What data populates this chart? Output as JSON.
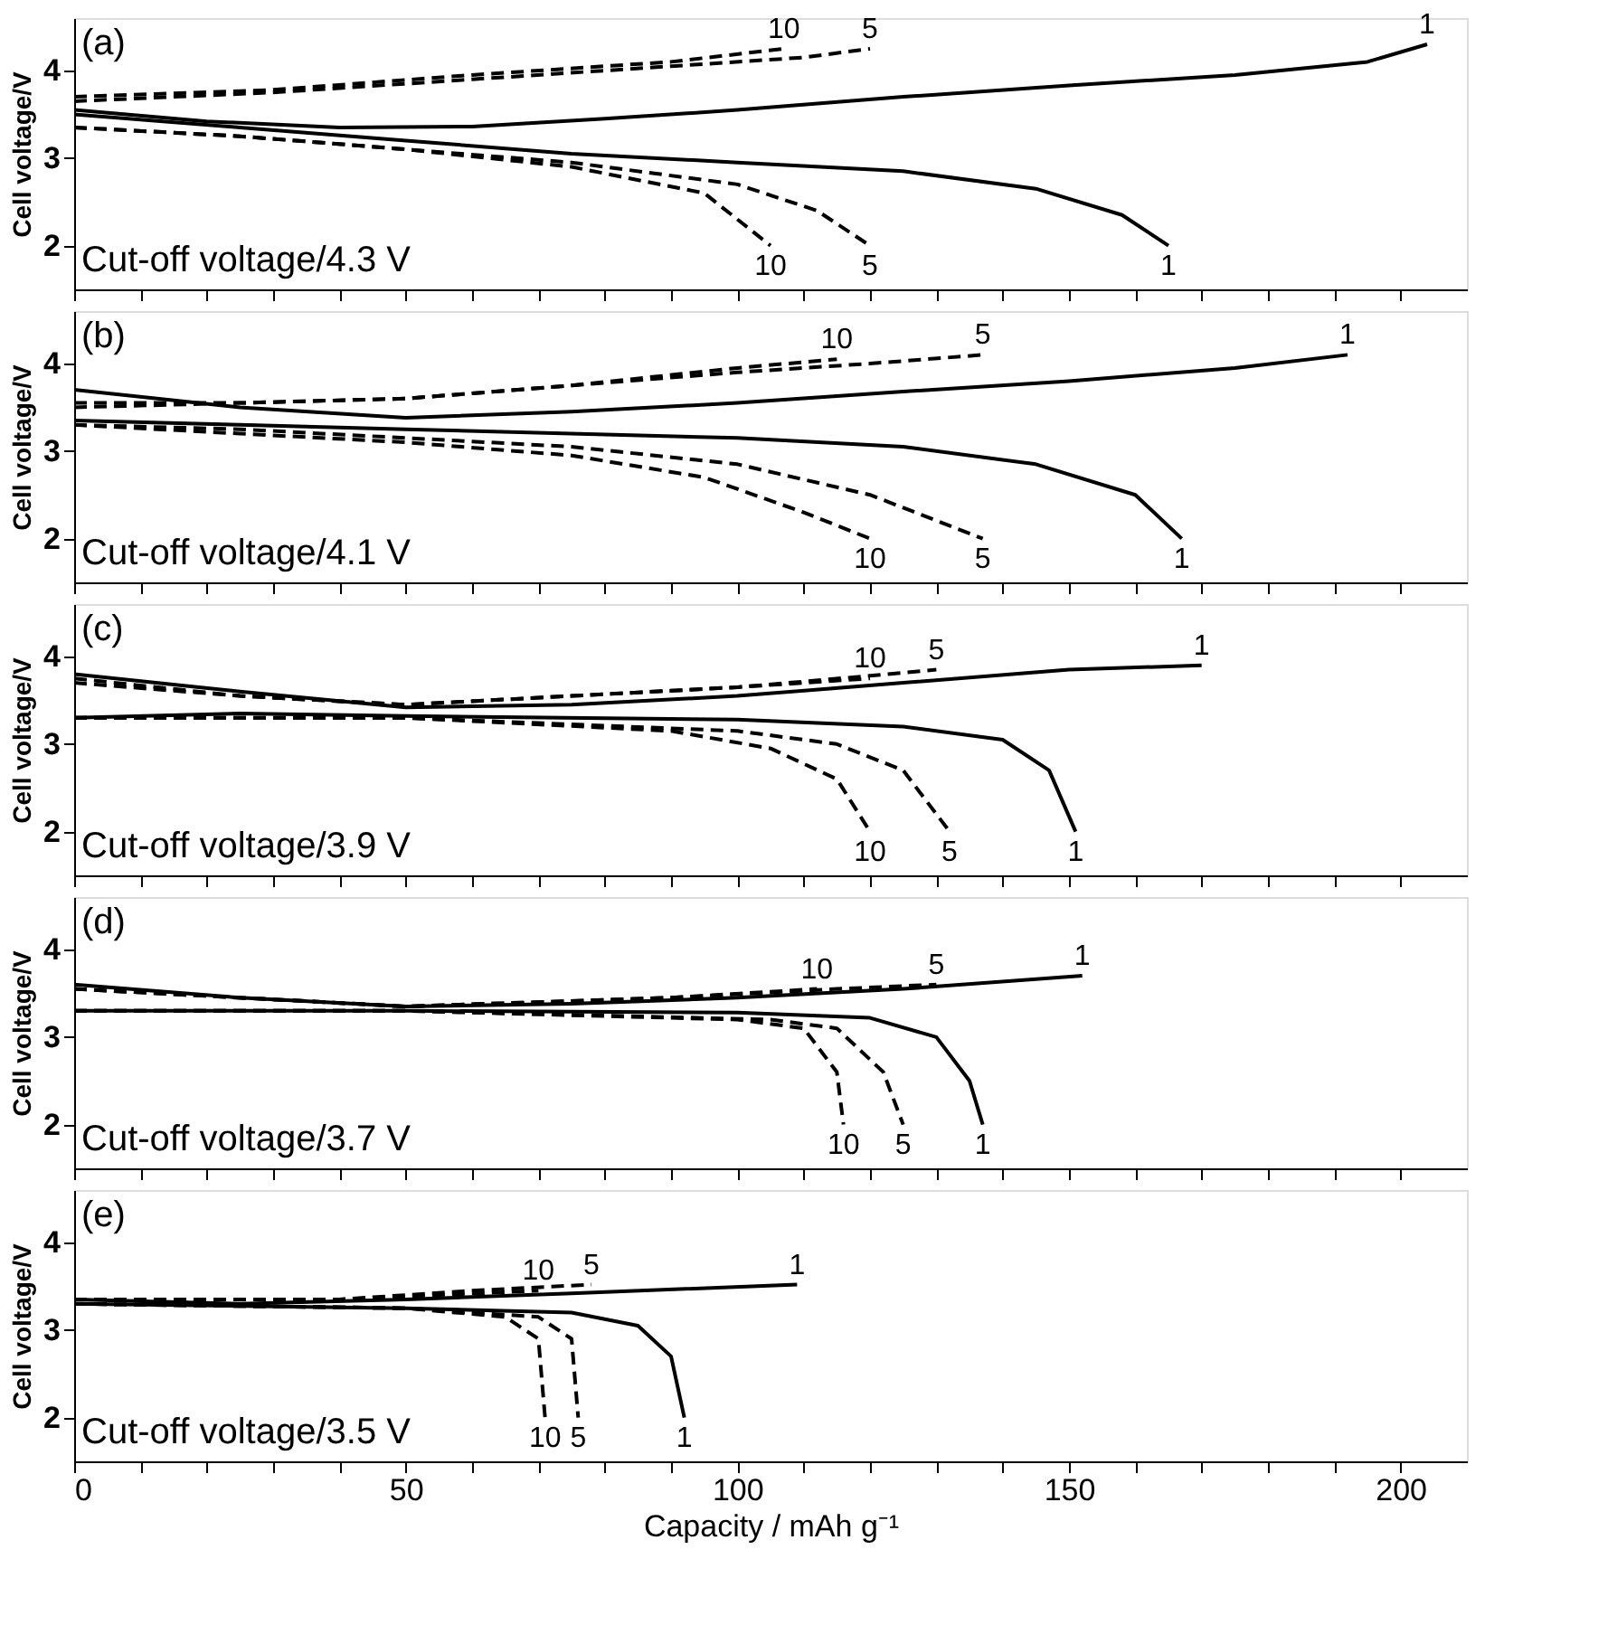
{
  "chart_data": [
    {
      "type": "line",
      "ylabel": "Cell voltage/V",
      "xlim": [
        0,
        210
      ],
      "ylim": [
        1.5,
        4.6
      ],
      "yticks": [
        2,
        3,
        4
      ],
      "tick_labels": "y",
      "grid": false,
      "xticks": [
        0,
        {
          "value": 10,
          "label": null
        },
        {
          "value": 20,
          "label": null
        },
        {
          "value": 30,
          "label": null
        },
        {
          "value": 40,
          "label": null
        },
        50,
        {
          "value": 60,
          "label": null
        },
        {
          "value": 70,
          "label": null
        },
        {
          "value": 80,
          "label": null
        },
        {
          "value": 90,
          "label": null
        },
        100,
        {
          "value": 110,
          "label": null
        },
        {
          "value": 120,
          "label": null
        },
        {
          "value": 130,
          "label": null
        },
        {
          "value": 140,
          "label": null
        },
        150,
        {
          "value": 160,
          "label": null
        },
        {
          "value": 170,
          "label": null
        },
        {
          "value": 180,
          "label": null
        },
        {
          "value": 190,
          "label": null
        },
        200
      ],
      "series": [
        {
          "color": "#000000",
          "line_style": "solid",
          "x": [
            0,
            20,
            40,
            60,
            80,
            100,
            125,
            150,
            175,
            195,
            204
          ],
          "values": [
            3.55,
            3.42,
            3.35,
            3.36,
            3.45,
            3.55,
            3.7,
            3.83,
            3.95,
            4.1,
            4.3
          ]
        },
        {
          "color": "#000000",
          "line_style": "dashed",
          "x": [
            0,
            30,
            60,
            90,
            110,
            120
          ],
          "values": [
            3.65,
            3.75,
            3.9,
            4.05,
            4.15,
            4.25
          ]
        },
        {
          "color": "#000000",
          "line_style": "dashed",
          "x": [
            0,
            30,
            60,
            90,
            107
          ],
          "values": [
            3.7,
            3.78,
            3.95,
            4.1,
            4.25
          ]
        },
        {
          "color": "#000000",
          "line_style": "solid",
          "x": [
            0,
            25,
            50,
            75,
            100,
            125,
            145,
            158,
            165
          ],
          "values": [
            3.5,
            3.35,
            3.2,
            3.05,
            2.95,
            2.85,
            2.65,
            2.35,
            2.0
          ]
        },
        {
          "color": "#000000",
          "line_style": "dashed",
          "x": [
            0,
            25,
            50,
            75,
            100,
            112,
            120
          ],
          "values": [
            3.35,
            3.25,
            3.1,
            2.95,
            2.7,
            2.4,
            2.0
          ]
        },
        {
          "color": "#000000",
          "line_style": "dashed",
          "x": [
            0,
            25,
            50,
            75,
            95,
            105
          ],
          "values": [
            3.35,
            3.25,
            3.1,
            2.9,
            2.6,
            2.0
          ]
        }
      ],
      "annotations": [
        "(a)",
        "Cut-off voltage/4.3 V",
        {
          "text": "1",
          "x": 204,
          "y": 4.3
        },
        {
          "text": "5",
          "x": 120,
          "y": 4.25
        },
        {
          "text": "10",
          "x": 107,
          "y": 4.25
        },
        {
          "text": "1",
          "x": 165,
          "y": 2.0
        },
        {
          "text": "5",
          "x": 120,
          "y": 2.0
        },
        {
          "text": "10",
          "x": 105,
          "y": 2.0
        }
      ]
    },
    {
      "type": "line",
      "ylabel": "Cell voltage/V",
      "xlim": [
        0,
        210
      ],
      "ylim": [
        1.5,
        4.6
      ],
      "yticks": [
        2,
        3,
        4
      ],
      "tick_labels": "y",
      "grid": false,
      "xticks": [
        0,
        {
          "value": 10,
          "label": null
        },
        {
          "value": 20,
          "label": null
        },
        {
          "value": 30,
          "label": null
        },
        {
          "value": 40,
          "label": null
        },
        50,
        {
          "value": 60,
          "label": null
        },
        {
          "value": 70,
          "label": null
        },
        {
          "value": 80,
          "label": null
        },
        {
          "value": 90,
          "label": null
        },
        100,
        {
          "value": 110,
          "label": null
        },
        {
          "value": 120,
          "label": null
        },
        {
          "value": 130,
          "label": null
        },
        {
          "value": 140,
          "label": null
        },
        150,
        {
          "value": 160,
          "label": null
        },
        {
          "value": 170,
          "label": null
        },
        {
          "value": 180,
          "label": null
        },
        {
          "value": 190,
          "label": null
        },
        200
      ],
      "series": [
        {
          "color": "#000000",
          "line_style": "solid",
          "x": [
            0,
            25,
            50,
            75,
            100,
            125,
            150,
            175,
            192
          ],
          "values": [
            3.7,
            3.5,
            3.38,
            3.45,
            3.55,
            3.68,
            3.8,
            3.95,
            4.1
          ]
        },
        {
          "color": "#000000",
          "line_style": "dashed",
          "x": [
            0,
            25,
            50,
            75,
            100,
            120,
            137
          ],
          "values": [
            3.55,
            3.55,
            3.6,
            3.75,
            3.9,
            4.0,
            4.1
          ]
        },
        {
          "color": "#000000",
          "line_style": "dashed",
          "x": [
            0,
            25,
            50,
            75,
            100,
            115
          ],
          "values": [
            3.5,
            3.55,
            3.6,
            3.75,
            3.95,
            4.05
          ]
        },
        {
          "color": "#000000",
          "line_style": "solid",
          "x": [
            0,
            25,
            50,
            100,
            125,
            145,
            160,
            167
          ],
          "values": [
            3.35,
            3.3,
            3.25,
            3.15,
            3.05,
            2.85,
            2.5,
            2.0
          ]
        },
        {
          "color": "#000000",
          "line_style": "dashed",
          "x": [
            0,
            25,
            50,
            75,
            100,
            120,
            137
          ],
          "values": [
            3.3,
            3.25,
            3.15,
            3.05,
            2.85,
            2.5,
            2.0
          ]
        },
        {
          "color": "#000000",
          "line_style": "dashed",
          "x": [
            0,
            25,
            50,
            75,
            95,
            110,
            120
          ],
          "values": [
            3.3,
            3.2,
            3.1,
            2.95,
            2.7,
            2.3,
            2.0
          ]
        }
      ],
      "annotations": [
        "(b)",
        "Cut-off voltage/4.1 V",
        {
          "text": "1",
          "x": 192,
          "y": 4.1
        },
        {
          "text": "5",
          "x": 137,
          "y": 4.1
        },
        {
          "text": "10",
          "x": 115,
          "y": 4.05
        },
        {
          "text": "1",
          "x": 167,
          "y": 2.0
        },
        {
          "text": "5",
          "x": 137,
          "y": 2.0
        },
        {
          "text": "10",
          "x": 120,
          "y": 2.0
        }
      ]
    },
    {
      "type": "line",
      "ylabel": "Cell voltage/V",
      "xlim": [
        0,
        210
      ],
      "ylim": [
        1.5,
        4.6
      ],
      "yticks": [
        2,
        3,
        4
      ],
      "tick_labels": "y",
      "grid": false,
      "xticks": [
        0,
        {
          "value": 10,
          "label": null
        },
        {
          "value": 20,
          "label": null
        },
        {
          "value": 30,
          "label": null
        },
        {
          "value": 40,
          "label": null
        },
        50,
        {
          "value": 60,
          "label": null
        },
        {
          "value": 70,
          "label": null
        },
        {
          "value": 80,
          "label": null
        },
        {
          "value": 90,
          "label": null
        },
        100,
        {
          "value": 110,
          "label": null
        },
        {
          "value": 120,
          "label": null
        },
        {
          "value": 130,
          "label": null
        },
        {
          "value": 140,
          "label": null
        },
        150,
        {
          "value": 160,
          "label": null
        },
        {
          "value": 170,
          "label": null
        },
        {
          "value": 180,
          "label": null
        },
        {
          "value": 190,
          "label": null
        },
        200
      ],
      "series": [
        {
          "color": "#000000",
          "line_style": "solid",
          "x": [
            0,
            25,
            50,
            75,
            100,
            125,
            150,
            170
          ],
          "values": [
            3.8,
            3.6,
            3.42,
            3.45,
            3.55,
            3.7,
            3.85,
            3.9
          ]
        },
        {
          "color": "#000000",
          "line_style": "dashed",
          "x": [
            0,
            25,
            50,
            75,
            100,
            120,
            130
          ],
          "values": [
            3.75,
            3.55,
            3.45,
            3.55,
            3.65,
            3.78,
            3.85
          ]
        },
        {
          "color": "#000000",
          "line_style": "dashed",
          "x": [
            0,
            25,
            50,
            75,
            100,
            120
          ],
          "values": [
            3.7,
            3.55,
            3.45,
            3.55,
            3.65,
            3.75
          ]
        },
        {
          "color": "#000000",
          "line_style": "solid",
          "x": [
            0,
            25,
            50,
            100,
            125,
            140,
            147,
            151
          ],
          "values": [
            3.3,
            3.35,
            3.32,
            3.28,
            3.2,
            3.05,
            2.7,
            2.0
          ]
        },
        {
          "color": "#000000",
          "line_style": "dashed",
          "x": [
            0,
            50,
            100,
            115,
            125,
            132
          ],
          "values": [
            3.3,
            3.3,
            3.15,
            3.0,
            2.7,
            2.0
          ]
        },
        {
          "color": "#000000",
          "line_style": "dashed",
          "x": [
            0,
            50,
            90,
            105,
            115,
            120
          ],
          "values": [
            3.3,
            3.3,
            3.15,
            2.95,
            2.6,
            2.0
          ]
        }
      ],
      "annotations": [
        "(c)",
        "Cut-off voltage/3.9 V",
        {
          "text": "1",
          "x": 170,
          "y": 3.9
        },
        {
          "text": "5",
          "x": 130,
          "y": 3.85
        },
        {
          "text": "10",
          "x": 120,
          "y": 3.75
        },
        {
          "text": "1",
          "x": 151,
          "y": 2.0
        },
        {
          "text": "5",
          "x": 132,
          "y": 2.0
        },
        {
          "text": "10",
          "x": 120,
          "y": 2.0
        }
      ]
    },
    {
      "type": "line",
      "ylabel": "Cell voltage/V",
      "xlim": [
        0,
        210
      ],
      "ylim": [
        1.5,
        4.6
      ],
      "yticks": [
        2,
        3,
        4
      ],
      "tick_labels": "y",
      "grid": false,
      "xticks": [
        0,
        {
          "value": 10,
          "label": null
        },
        {
          "value": 20,
          "label": null
        },
        {
          "value": 30,
          "label": null
        },
        {
          "value": 40,
          "label": null
        },
        50,
        {
          "value": 60,
          "label": null
        },
        {
          "value": 70,
          "label": null
        },
        {
          "value": 80,
          "label": null
        },
        {
          "value": 90,
          "label": null
        },
        100,
        {
          "value": 110,
          "label": null
        },
        {
          "value": 120,
          "label": null
        },
        {
          "value": 130,
          "label": null
        },
        {
          "value": 140,
          "label": null
        },
        150,
        {
          "value": 160,
          "label": null
        },
        {
          "value": 170,
          "label": null
        },
        {
          "value": 180,
          "label": null
        },
        {
          "value": 190,
          "label": null
        },
        200
      ],
      "series": [
        {
          "color": "#000000",
          "line_style": "solid",
          "x": [
            0,
            25,
            50,
            75,
            100,
            125,
            152
          ],
          "values": [
            3.6,
            3.45,
            3.35,
            3.38,
            3.45,
            3.55,
            3.7
          ]
        },
        {
          "color": "#000000",
          "line_style": "dashed",
          "x": [
            0,
            50,
            90,
            115,
            130
          ],
          "values": [
            3.55,
            3.35,
            3.45,
            3.55,
            3.6
          ]
        },
        {
          "color": "#000000",
          "line_style": "dashed",
          "x": [
            0,
            50,
            90,
            112
          ],
          "values": [
            3.55,
            3.35,
            3.45,
            3.55
          ]
        },
        {
          "color": "#000000",
          "line_style": "solid",
          "x": [
            0,
            50,
            100,
            120,
            130,
            135,
            137
          ],
          "values": [
            3.3,
            3.3,
            3.28,
            3.22,
            3.0,
            2.5,
            2.0
          ]
        },
        {
          "color": "#000000",
          "line_style": "dashed",
          "x": [
            0,
            50,
            105,
            115,
            122,
            125
          ],
          "values": [
            3.3,
            3.3,
            3.2,
            3.1,
            2.6,
            2.0
          ]
        },
        {
          "color": "#000000",
          "line_style": "dashed",
          "x": [
            0,
            50,
            100,
            110,
            115,
            116
          ],
          "values": [
            3.3,
            3.3,
            3.2,
            3.1,
            2.6,
            2.0
          ]
        }
      ],
      "annotations": [
        "(d)",
        "Cut-off voltage/3.7 V",
        {
          "text": "1",
          "x": 152,
          "y": 3.7
        },
        {
          "text": "5",
          "x": 130,
          "y": 3.6
        },
        {
          "text": "10",
          "x": 112,
          "y": 3.55
        },
        {
          "text": "1",
          "x": 137,
          "y": 2.0
        },
        {
          "text": "5",
          "x": 125,
          "y": 2.0
        },
        {
          "text": "10",
          "x": 116,
          "y": 2.0
        }
      ]
    },
    {
      "type": "line",
      "ylabel": "Cell voltage/V",
      "xlabel": "Capacity / mAh g⁻¹",
      "xlim": [
        0,
        210
      ],
      "ylim": [
        1.5,
        4.6
      ],
      "yticks": [
        2,
        3,
        4
      ],
      "grid": false,
      "xticks": [
        0,
        {
          "value": 10,
          "label": null
        },
        {
          "value": 20,
          "label": null
        },
        {
          "value": 30,
          "label": null
        },
        {
          "value": 40,
          "label": null
        },
        50,
        {
          "value": 60,
          "label": null
        },
        {
          "value": 70,
          "label": null
        },
        {
          "value": 80,
          "label": null
        },
        {
          "value": 90,
          "label": null
        },
        100,
        {
          "value": 110,
          "label": null
        },
        {
          "value": 120,
          "label": null
        },
        {
          "value": 130,
          "label": null
        },
        {
          "value": 140,
          "label": null
        },
        150,
        {
          "value": 160,
          "label": null
        },
        {
          "value": 170,
          "label": null
        },
        {
          "value": 180,
          "label": null
        },
        {
          "value": 190,
          "label": null
        },
        200
      ],
      "series": [
        {
          "color": "#000000",
          "line_style": "solid",
          "x": [
            0,
            25,
            50,
            75,
            109
          ],
          "values": [
            3.35,
            3.3,
            3.35,
            3.42,
            3.52
          ]
        },
        {
          "color": "#000000",
          "line_style": "dashed",
          "x": [
            0,
            40,
            60,
            78
          ],
          "values": [
            3.35,
            3.35,
            3.45,
            3.52
          ]
        },
        {
          "color": "#000000",
          "line_style": "dashed",
          "x": [
            0,
            40,
            70
          ],
          "values": [
            3.35,
            3.35,
            3.45
          ]
        },
        {
          "color": "#000000",
          "line_style": "solid",
          "x": [
            0,
            50,
            75,
            85,
            90,
            92
          ],
          "values": [
            3.3,
            3.25,
            3.2,
            3.05,
            2.7,
            2.0
          ]
        },
        {
          "color": "#000000",
          "line_style": "dashed",
          "x": [
            0,
            50,
            70,
            75,
            76
          ],
          "values": [
            3.3,
            3.25,
            3.15,
            2.9,
            2.0
          ]
        },
        {
          "color": "#000000",
          "line_style": "dashed",
          "x": [
            0,
            50,
            65,
            70,
            71
          ],
          "values": [
            3.3,
            3.25,
            3.15,
            2.9,
            2.0
          ]
        }
      ],
      "annotations": [
        "(e)",
        "Cut-off voltage/3.5 V",
        {
          "text": "1",
          "x": 109,
          "y": 3.52
        },
        {
          "text": "5",
          "x": 78,
          "y": 3.52
        },
        {
          "text": "10",
          "x": 70,
          "y": 3.45
        },
        {
          "text": "1",
          "x": 92,
          "y": 2.0
        },
        {
          "text": "5",
          "x": 76,
          "y": 2.0
        },
        {
          "text": "10",
          "x": 71,
          "y": 2.0
        }
      ]
    }
  ]
}
